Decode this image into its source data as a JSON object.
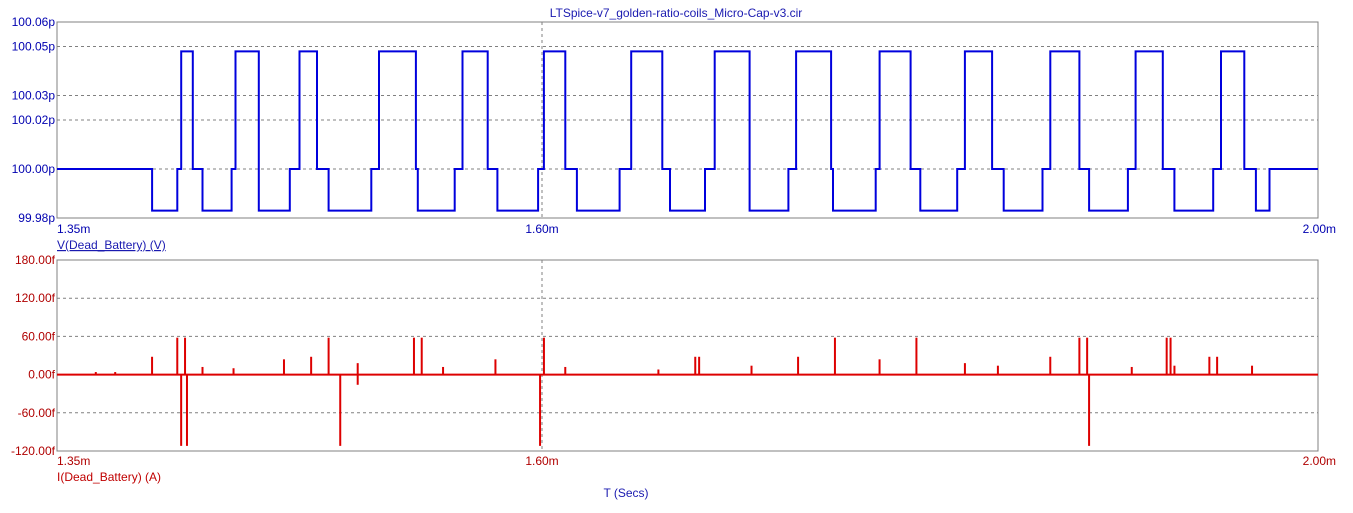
{
  "title": "LTSpice-v7_golden-ratio-coils_Micro-Cap-v3.cir",
  "xlabel": "T (Secs)",
  "colors": {
    "voltage": "#0000dd",
    "current": "#dd0000",
    "grid": "#808080"
  },
  "chart_data": [
    {
      "type": "line",
      "name": "voltage-panel",
      "ylabel": "V(Dead_Battery) (V)",
      "xlim": [
        1.35,
        2.0
      ],
      "ylim": [
        99.98,
        100.06
      ],
      "x_ticks": [
        1.35,
        1.6,
        2.0
      ],
      "x_tick_labels": [
        "1.35m",
        "1.60m",
        "2.00m"
      ],
      "y_ticks": [
        99.98,
        100.0,
        100.02,
        100.03,
        100.05,
        100.06
      ],
      "y_tick_labels": [
        "99.98p",
        "100.00p",
        "100.02p",
        "100.03p",
        "100.05p",
        "100.06p"
      ],
      "grid": true,
      "levels": {
        "baseline": 100.0,
        "high": 100.048,
        "low": 99.983
      },
      "series": [
        {
          "color": "#0000dd",
          "pulses": [
            [
              1.414,
              1.42
            ],
            [
              1.442,
              1.454
            ],
            [
              1.475,
              1.484
            ],
            [
              1.516,
              1.535
            ],
            [
              1.559,
              1.572
            ],
            [
              1.601,
              1.612
            ],
            [
              1.646,
              1.662
            ],
            [
              1.689,
              1.707
            ],
            [
              1.731,
              1.749
            ],
            [
              1.774,
              1.79
            ],
            [
              1.818,
              1.832
            ],
            [
              1.862,
              1.877
            ],
            [
              1.906,
              1.92
            ],
            [
              1.95,
              1.962
            ]
          ],
          "dips": [
            [
              1.399,
              1.412
            ],
            [
              1.425,
              1.44
            ],
            [
              1.454,
              1.47
            ],
            [
              1.49,
              1.512
            ],
            [
              1.536,
              1.555
            ],
            [
              1.577,
              1.598
            ],
            [
              1.618,
              1.64
            ],
            [
              1.666,
              1.684
            ],
            [
              1.707,
              1.727
            ],
            [
              1.75,
              1.772
            ],
            [
              1.795,
              1.814
            ],
            [
              1.838,
              1.858
            ],
            [
              1.882,
              1.902
            ],
            [
              1.926,
              1.946
            ],
            [
              1.968,
              1.975
            ]
          ]
        }
      ]
    },
    {
      "type": "line",
      "name": "current-panel",
      "ylabel": "I(Dead_Battery) (A)",
      "xlim": [
        1.35,
        2.0
      ],
      "ylim": [
        -120,
        180
      ],
      "x_ticks": [
        1.35,
        1.6,
        2.0
      ],
      "x_tick_labels": [
        "1.35m",
        "1.60m",
        "2.00m"
      ],
      "y_ticks": [
        -120,
        -60,
        0,
        60,
        120,
        180
      ],
      "y_tick_labels": [
        "-120.00f",
        "-60.00f",
        "0.00f",
        "60.00f",
        "120.00f",
        "180.00f"
      ],
      "grid": true,
      "series": [
        {
          "color": "#dd0000",
          "spikes": [
            [
              1.37,
              4
            ],
            [
              1.38,
              4
            ],
            [
              1.399,
              28
            ],
            [
              1.412,
              58
            ],
            [
              1.414,
              -112
            ],
            [
              1.416,
              58
            ],
            [
              1.417,
              -112
            ],
            [
              1.425,
              12
            ],
            [
              1.441,
              10
            ],
            [
              1.467,
              24
            ],
            [
              1.481,
              28
            ],
            [
              1.49,
              58
            ],
            [
              1.496,
              -112
            ],
            [
              1.505,
              18
            ],
            [
              1.505,
              -16
            ],
            [
              1.534,
              58
            ],
            [
              1.538,
              58
            ],
            [
              1.549,
              12
            ],
            [
              1.576,
              24
            ],
            [
              1.599,
              -112
            ],
            [
              1.601,
              58
            ],
            [
              1.612,
              12
            ],
            [
              1.66,
              8
            ],
            [
              1.679,
              28
            ],
            [
              1.681,
              28
            ],
            [
              1.708,
              14
            ],
            [
              1.732,
              28
            ],
            [
              1.751,
              58
            ],
            [
              1.774,
              24
            ],
            [
              1.793,
              58
            ],
            [
              1.818,
              18
            ],
            [
              1.835,
              14
            ],
            [
              1.862,
              28
            ],
            [
              1.877,
              58
            ],
            [
              1.881,
              58
            ],
            [
              1.882,
              -112
            ],
            [
              1.904,
              12
            ],
            [
              1.922,
              58
            ],
            [
              1.924,
              58
            ],
            [
              1.926,
              14
            ],
            [
              1.944,
              28
            ],
            [
              1.948,
              28
            ],
            [
              1.966,
              14
            ]
          ]
        }
      ]
    }
  ]
}
